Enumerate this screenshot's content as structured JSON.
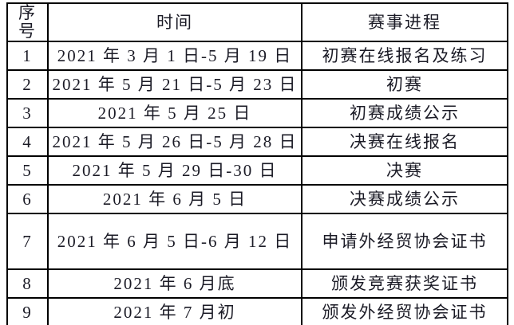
{
  "table": {
    "headers": [
      "序号",
      "时间",
      "赛事进程"
    ],
    "rows": [
      {
        "num": "1",
        "time": "2021 年 3 月 1 日-5 月 19 日",
        "stage": "初赛在线报名及练习"
      },
      {
        "num": "2",
        "time": "2021 年 5 月 21 日-5 月 23 日",
        "stage": "初赛"
      },
      {
        "num": "3",
        "time": "2021 年 5 月 25 日",
        "stage": "初赛成绩公示"
      },
      {
        "num": "4",
        "time": "2021 年 5 月 26 日-5 月 28 日",
        "stage": "决赛在线报名"
      },
      {
        "num": "5",
        "time": "2021 年 5 月 29 日-30 日",
        "stage": "决赛"
      },
      {
        "num": "6",
        "time": "2021 年 6 月 5 日",
        "stage": "决赛成绩公示"
      },
      {
        "num": "7",
        "time": "2021 年 6 月 5 日-6 月 12 日",
        "stage": "申请外经贸协会证书"
      },
      {
        "num": "8",
        "time": "2021 年 6 月底",
        "stage": "颁发竞赛获奖证书"
      },
      {
        "num": "9",
        "time": "2021 年 7 月初",
        "stage": "颁发外经贸协会证书"
      }
    ]
  },
  "colors": {
    "border": "#000000",
    "text": "#1b1b26",
    "background": "#ffffff"
  }
}
